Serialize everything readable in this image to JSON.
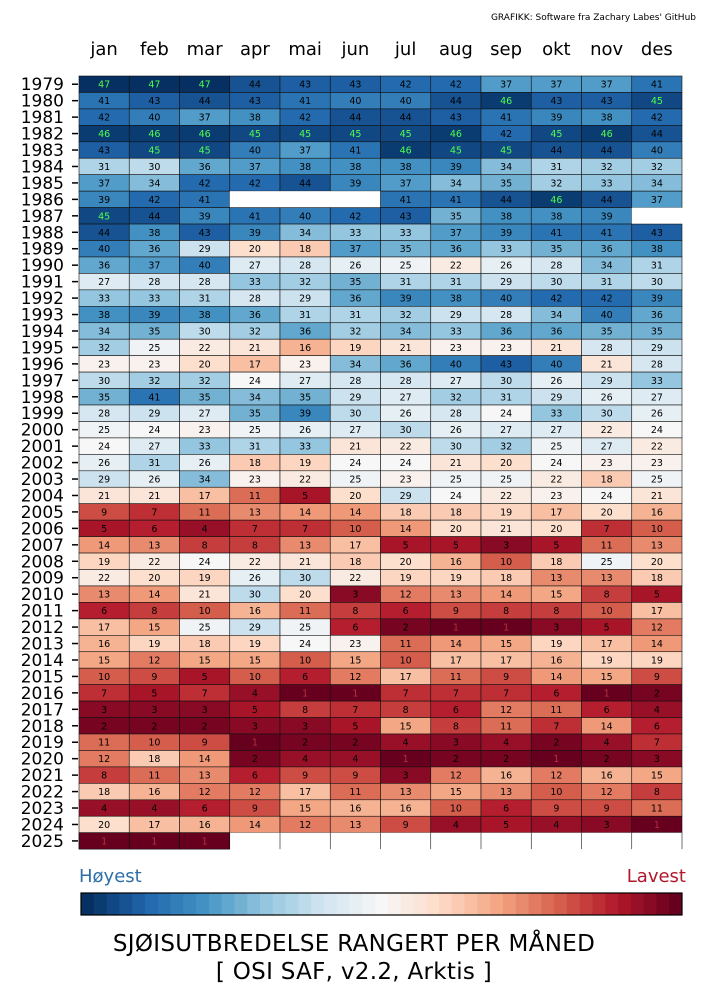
{
  "credit": "GRAFIKK: Software fra Zachary Labes' GitHub",
  "title": "SJØISUTBREDELSE RANGERT PER MÅNED",
  "subtitle": "[ OSI SAF, v2.2, Arktis ]",
  "colorbar": {
    "high_label": "Høyest",
    "low_label": "Lavest",
    "high_color": "#2f6fa8",
    "low_color": "#b2182b"
  },
  "chart_data": {
    "type": "heatmap",
    "colormap": "RdBu_r",
    "value_range": [
      1,
      47
    ],
    "highlight_value_color": "#4dff4d",
    "months": [
      "jan",
      "feb",
      "mar",
      "apr",
      "mai",
      "jun",
      "jul",
      "aug",
      "sep",
      "okt",
      "nov",
      "des"
    ],
    "years": [
      "1979",
      "1980",
      "1981",
      "1982",
      "1983",
      "1984",
      "1985",
      "1986",
      "1987",
      "1988",
      "1989",
      "1990",
      "1991",
      "1992",
      "1993",
      "1994",
      "1995",
      "1996",
      "1997",
      "1998",
      "1999",
      "2000",
      "2001",
      "2002",
      "2003",
      "2004",
      "2005",
      "2006",
      "2007",
      "2008",
      "2009",
      "2010",
      "2011",
      "2012",
      "2013",
      "2014",
      "2015",
      "2016",
      "2017",
      "2018",
      "2019",
      "2020",
      "2021",
      "2022",
      "2023",
      "2024",
      "2025"
    ],
    "values": [
      [
        47,
        47,
        47,
        44,
        43,
        43,
        42,
        42,
        37,
        37,
        37,
        41
      ],
      [
        41,
        43,
        44,
        43,
        41,
        40,
        40,
        44,
        46,
        43,
        43,
        45
      ],
      [
        42,
        40,
        37,
        38,
        42,
        44,
        44,
        43,
        41,
        39,
        38,
        42
      ],
      [
        46,
        46,
        46,
        45,
        45,
        45,
        45,
        46,
        42,
        45,
        46,
        44
      ],
      [
        43,
        45,
        45,
        40,
        37,
        41,
        46,
        45,
        45,
        44,
        44,
        40
      ],
      [
        31,
        30,
        36,
        37,
        38,
        38,
        38,
        39,
        34,
        31,
        32,
        32
      ],
      [
        37,
        34,
        42,
        42,
        44,
        39,
        37,
        34,
        35,
        32,
        33,
        34
      ],
      [
        39,
        42,
        41,
        null,
        null,
        null,
        41,
        41,
        44,
        46,
        44,
        37
      ],
      [
        45,
        44,
        39,
        41,
        40,
        42,
        43,
        35,
        38,
        38,
        39,
        null
      ],
      [
        44,
        38,
        43,
        39,
        34,
        33,
        33,
        37,
        39,
        41,
        41,
        43
      ],
      [
        40,
        36,
        29,
        20,
        18,
        37,
        35,
        36,
        33,
        35,
        36,
        38
      ],
      [
        36,
        37,
        40,
        27,
        28,
        26,
        25,
        22,
        26,
        28,
        34,
        31
      ],
      [
        27,
        28,
        28,
        33,
        32,
        35,
        31,
        31,
        29,
        30,
        31,
        30
      ],
      [
        33,
        33,
        31,
        28,
        29,
        36,
        39,
        38,
        40,
        42,
        42,
        39
      ],
      [
        38,
        39,
        38,
        36,
        31,
        31,
        32,
        29,
        28,
        34,
        40,
        36
      ],
      [
        34,
        35,
        30,
        32,
        36,
        32,
        34,
        33,
        36,
        36,
        35,
        35
      ],
      [
        32,
        25,
        22,
        21,
        16,
        19,
        21,
        23,
        23,
        21,
        28,
        29
      ],
      [
        23,
        23,
        20,
        17,
        23,
        34,
        36,
        40,
        43,
        40,
        21,
        28
      ],
      [
        30,
        32,
        32,
        24,
        27,
        28,
        28,
        27,
        30,
        26,
        29,
        33
      ],
      [
        35,
        41,
        35,
        34,
        35,
        29,
        27,
        32,
        31,
        29,
        26,
        27
      ],
      [
        28,
        29,
        27,
        35,
        39,
        30,
        26,
        28,
        24,
        33,
        30,
        26
      ],
      [
        25,
        24,
        23,
        25,
        26,
        27,
        30,
        26,
        27,
        27,
        22,
        24
      ],
      [
        24,
        27,
        33,
        31,
        33,
        21,
        22,
        30,
        32,
        25,
        27,
        22
      ],
      [
        26,
        31,
        26,
        18,
        19,
        24,
        24,
        21,
        20,
        24,
        23,
        23
      ],
      [
        29,
        26,
        34,
        23,
        22,
        25,
        23,
        25,
        25,
        22,
        18,
        25
      ],
      [
        21,
        21,
        17,
        11,
        5,
        20,
        29,
        24,
        22,
        23,
        24,
        21
      ],
      [
        9,
        7,
        11,
        13,
        14,
        14,
        18,
        18,
        19,
        17,
        20,
        16
      ],
      [
        5,
        6,
        4,
        7,
        7,
        10,
        14,
        20,
        21,
        20,
        7,
        10
      ],
      [
        14,
        13,
        8,
        8,
        13,
        17,
        5,
        5,
        3,
        5,
        11,
        13
      ],
      [
        19,
        22,
        24,
        22,
        21,
        18,
        20,
        16,
        10,
        18,
        25,
        20
      ],
      [
        22,
        20,
        19,
        26,
        30,
        22,
        19,
        19,
        18,
        13,
        13,
        18
      ],
      [
        13,
        14,
        21,
        30,
        20,
        3,
        12,
        13,
        14,
        15,
        8,
        5
      ],
      [
        6,
        8,
        10,
        16,
        11,
        8,
        6,
        9,
        8,
        8,
        10,
        17
      ],
      [
        17,
        15,
        25,
        29,
        25,
        6,
        2,
        1,
        1,
        3,
        5,
        12
      ],
      [
        16,
        19,
        18,
        19,
        24,
        23,
        11,
        14,
        15,
        19,
        17,
        14
      ],
      [
        15,
        12,
        15,
        15,
        10,
        15,
        10,
        17,
        17,
        16,
        19,
        19
      ],
      [
        10,
        9,
        5,
        10,
        6,
        12,
        17,
        11,
        9,
        14,
        15,
        9
      ],
      [
        7,
        5,
        7,
        4,
        1,
        1,
        7,
        7,
        7,
        6,
        1,
        2
      ],
      [
        3,
        3,
        3,
        5,
        8,
        7,
        8,
        6,
        12,
        11,
        6,
        4
      ],
      [
        2,
        2,
        2,
        3,
        3,
        5,
        15,
        8,
        11,
        7,
        14,
        6
      ],
      [
        11,
        10,
        9,
        1,
        2,
        2,
        4,
        3,
        4,
        2,
        4,
        7
      ],
      [
        12,
        18,
        14,
        2,
        4,
        4,
        1,
        2,
        2,
        1,
        2,
        3
      ],
      [
        8,
        11,
        13,
        6,
        9,
        9,
        3,
        12,
        16,
        12,
        16,
        15
      ],
      [
        18,
        16,
        12,
        12,
        17,
        11,
        13,
        15,
        13,
        10,
        12,
        8
      ],
      [
        4,
        4,
        6,
        9,
        15,
        16,
        16,
        10,
        6,
        9,
        9,
        11
      ],
      [
        20,
        17,
        16,
        14,
        12,
        13,
        9,
        4,
        5,
        4,
        3,
        1
      ],
      [
        1,
        1,
        1,
        null,
        null,
        null,
        null,
        null,
        null,
        null,
        null,
        null
      ]
    ]
  }
}
